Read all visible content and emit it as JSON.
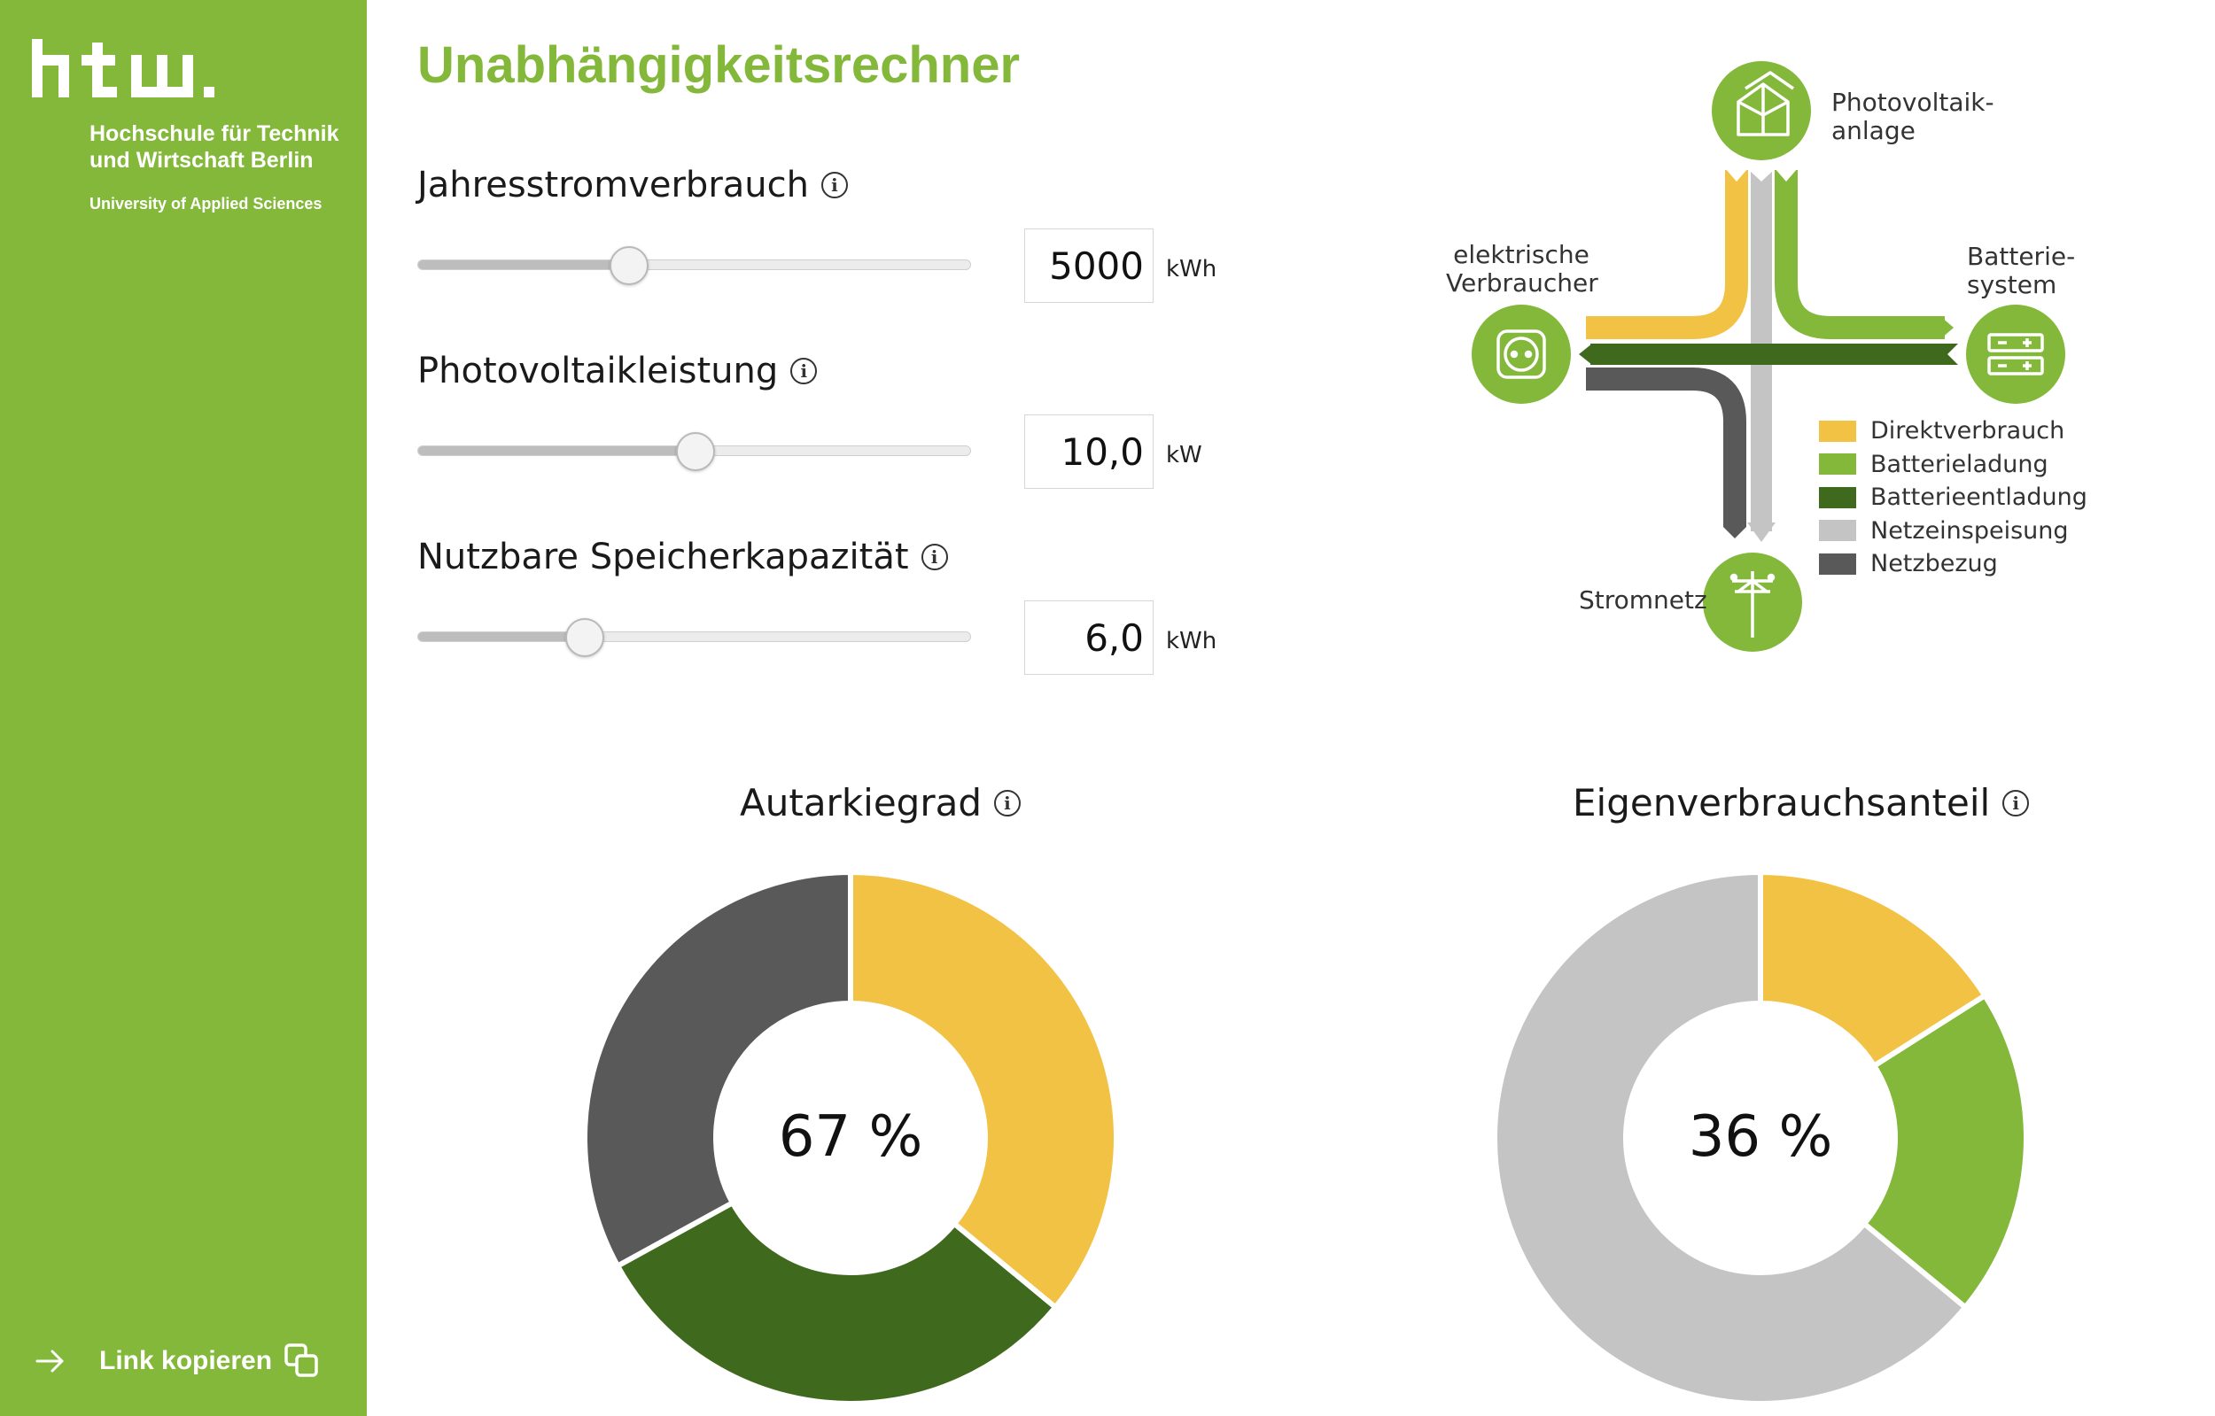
{
  "sidebar": {
    "logo_alt": "htw.",
    "institution": "Hochschule für Technik und Wirtschaft Berlin",
    "subtitle": "University of Applied Sciences",
    "link_label": "Link kopieren"
  },
  "title": "Unabhängigkeitsrechner",
  "controls": [
    {
      "label": "Jahresstromverbrauch",
      "value": "5000",
      "unit": "kWh",
      "slider_fraction": 0.38
    },
    {
      "label": "Photovoltaikleistung",
      "value": "10,0",
      "unit": "kW",
      "slider_fraction": 0.5
    },
    {
      "label": "Nutzbare Speicherkapazität",
      "value": "6,0",
      "unit": "kWh",
      "slider_fraction": 0.3
    }
  ],
  "diagram": {
    "pv_label_1": "Photovoltaik-",
    "pv_label_2": "anlage",
    "consumer_label_1": "elektrische",
    "consumer_label_2": "Verbraucher",
    "battery_label_1": "Batterie-",
    "battery_label_2": "system",
    "grid_label": "Stromnetz",
    "legend": [
      {
        "label": "Direktverbrauch",
        "color": "#f2c244"
      },
      {
        "label": "Batterieladung",
        "color": "#84b83a"
      },
      {
        "label": "Batterieentladung",
        "color": "#3f6a1e"
      },
      {
        "label": "Netzeinspeisung",
        "color": "#c4c4c4"
      },
      {
        "label": "Netzbezug",
        "color": "#595959"
      }
    ]
  },
  "chart_data": [
    {
      "type": "pie",
      "title": "Autarkiegrad",
      "center_label": "67 %",
      "slices": [
        {
          "name": "Direktverbrauch",
          "value": 36,
          "color": "#f2c244"
        },
        {
          "name": "Batterieentladung",
          "value": 31,
          "color": "#3f6a1e"
        },
        {
          "name": "Netzbezug",
          "value": 33,
          "color": "#595959"
        }
      ]
    },
    {
      "type": "pie",
      "title": "Eigenverbrauchsanteil",
      "center_label": "36 %",
      "slices": [
        {
          "name": "Direktverbrauch",
          "value": 16,
          "color": "#f2c244"
        },
        {
          "name": "Batterieladung",
          "value": 20,
          "color": "#84b83a"
        },
        {
          "name": "Netzeinspeisung",
          "value": 64,
          "color": "#c4c4c4"
        }
      ]
    }
  ]
}
